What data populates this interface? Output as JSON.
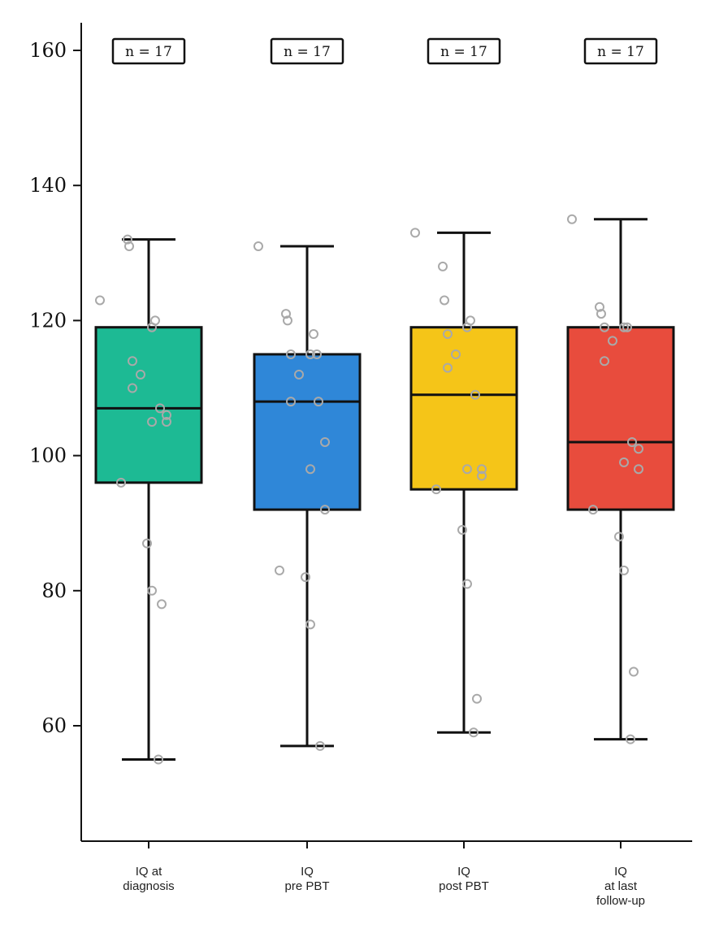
{
  "chart_data": {
    "type": "box",
    "title": "",
    "xlabel": "",
    "ylabel": "",
    "ylim": [
      45,
      165
    ],
    "yticks": [
      60,
      80,
      100,
      120,
      140,
      160
    ],
    "grid": false,
    "legend": "none",
    "categories": [
      {
        "label_lines": [
          "IQ at",
          "diagnosis"
        ],
        "n_label": "n = 17",
        "color": "#1dba94",
        "whisker_low": 55,
        "q1": 96,
        "median": 107,
        "q3": 119,
        "whisker_high": 132,
        "points": [
          123,
          132,
          131,
          120,
          119,
          114,
          112,
          110,
          107,
          106,
          105,
          105,
          96,
          87,
          80,
          78,
          55
        ]
      },
      {
        "label_lines": [
          "IQ",
          "pre PBT"
        ],
        "n_label": "n = 17",
        "color": "#2f87d8",
        "whisker_low": 57,
        "q1": 92,
        "median": 108,
        "q3": 115,
        "whisker_high": 131,
        "points": [
          131,
          121,
          120,
          118,
          115,
          115,
          112,
          108,
          108,
          102,
          98,
          92,
          83,
          82,
          75,
          57,
          115
        ]
      },
      {
        "label_lines": [
          "IQ",
          "post PBT"
        ],
        "n_label": "n = 17",
        "color": "#f5c518",
        "whisker_low": 59,
        "q1": 95,
        "median": 109,
        "q3": 119,
        "whisker_high": 133,
        "points": [
          133,
          128,
          123,
          120,
          119,
          118,
          115,
          113,
          109,
          98,
          98,
          97,
          95,
          89,
          81,
          64,
          59
        ]
      },
      {
        "label_lines": [
          "IQ",
          "at last",
          "follow-up"
        ],
        "n_label": "n = 17",
        "color": "#e84c3d",
        "whisker_low": 58,
        "q1": 92,
        "median": 102,
        "q3": 119,
        "whisker_high": 135,
        "points": [
          135,
          122,
          121,
          119,
          119,
          119,
          117,
          114,
          102,
          101,
          99,
          98,
          92,
          88,
          83,
          68,
          58
        ]
      }
    ]
  }
}
